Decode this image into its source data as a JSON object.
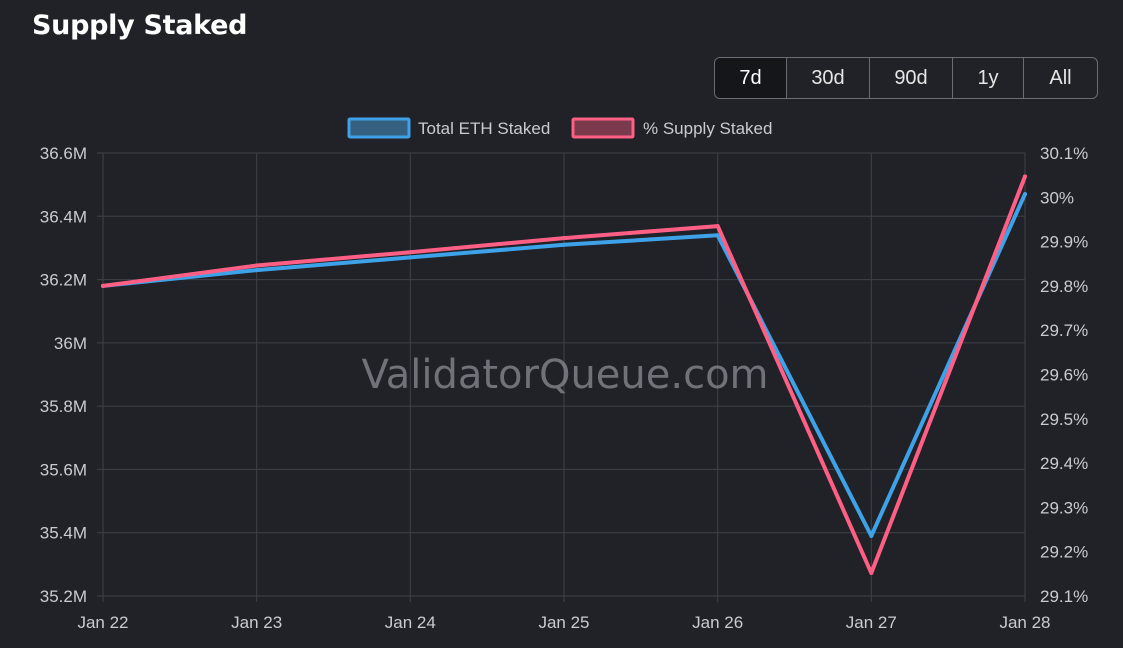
{
  "header": {
    "title": "Supply Staked"
  },
  "range_selector": {
    "options": [
      "7d",
      "30d",
      "90d",
      "1y",
      "All"
    ],
    "selected": "7d"
  },
  "watermark": "ValidatorQueue.com",
  "colors": {
    "background": "#202227",
    "grid": "#3f4148",
    "total_eth": "#3ea2e8",
    "pct_supply": "#ff5f85"
  },
  "chart_data": {
    "type": "line",
    "title": "Supply Staked",
    "categories": [
      "Jan 22",
      "Jan 23",
      "Jan 24",
      "Jan 25",
      "Jan 26",
      "Jan 27",
      "Jan 28"
    ],
    "legend_position": "top-center",
    "grid": true,
    "y_left": {
      "ylim": [
        35.2,
        36.6
      ],
      "ticks": [
        35.2,
        35.4,
        35.6,
        35.8,
        36.0,
        36.2,
        36.4,
        36.6
      ],
      "tick_labels": [
        "35.2M",
        "35.4M",
        "35.6M",
        "35.8M",
        "36M",
        "36.2M",
        "36.4M",
        "36.6M"
      ]
    },
    "y_right": {
      "ylim": [
        29.1,
        30.1
      ],
      "ticks": [
        29.1,
        29.2,
        29.3,
        29.4,
        29.5,
        29.6,
        29.7,
        29.8,
        29.9,
        30.0,
        30.1
      ],
      "tick_labels": [
        "29.1%",
        "29.2%",
        "29.3%",
        "29.4%",
        "29.5%",
        "29.6%",
        "29.7%",
        "29.8%",
        "29.9%",
        "30%",
        "30.1%"
      ]
    },
    "series": [
      {
        "name": "Total ETH Staked",
        "axis": "left",
        "unit": "M ETH",
        "values": [
          36.18,
          36.23,
          36.27,
          36.31,
          36.34,
          35.39,
          36.47
        ]
      },
      {
        "name": "% Supply Staked",
        "axis": "right",
        "unit": "%",
        "values": [
          29.8,
          29.846,
          29.876,
          29.908,
          29.935,
          29.152,
          30.047
        ]
      }
    ]
  }
}
